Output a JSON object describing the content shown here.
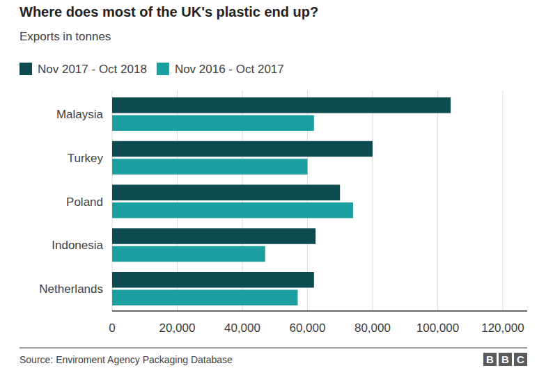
{
  "chart_data": {
    "type": "bar",
    "orientation": "horizontal",
    "title": "Where does most of the UK's plastic end up?",
    "subtitle": "Exports in tonnes",
    "categories": [
      "Malaysia",
      "Turkey",
      "Poland",
      "Indonesia",
      "Netherlands"
    ],
    "series": [
      {
        "name": "Nov 2017 - Oct 2018",
        "color": "#0e4b50",
        "values": [
          104000,
          80000,
          70000,
          62500,
          62000
        ]
      },
      {
        "name": "Nov 2016 - Oct 2017",
        "color": "#1c9fa0",
        "values": [
          62000,
          60000,
          74000,
          47000,
          57000
        ]
      }
    ],
    "xlim": [
      0,
      127500
    ],
    "xticks": [
      0,
      {
        "value": 20000,
        "label": "20,000"
      },
      {
        "value": 40000,
        "label": "40,000"
      },
      {
        "value": 60000,
        "label": "60,000"
      },
      {
        "value": 80000,
        "label": "80,000"
      },
      {
        "value": 100000,
        "label": "100,000"
      },
      {
        "value": 120000,
        "label": "120,000"
      }
    ],
    "grid": true,
    "legend": "top-left",
    "source": "Source: Enviroment Agency Packaging Database",
    "logo": "BBC"
  }
}
